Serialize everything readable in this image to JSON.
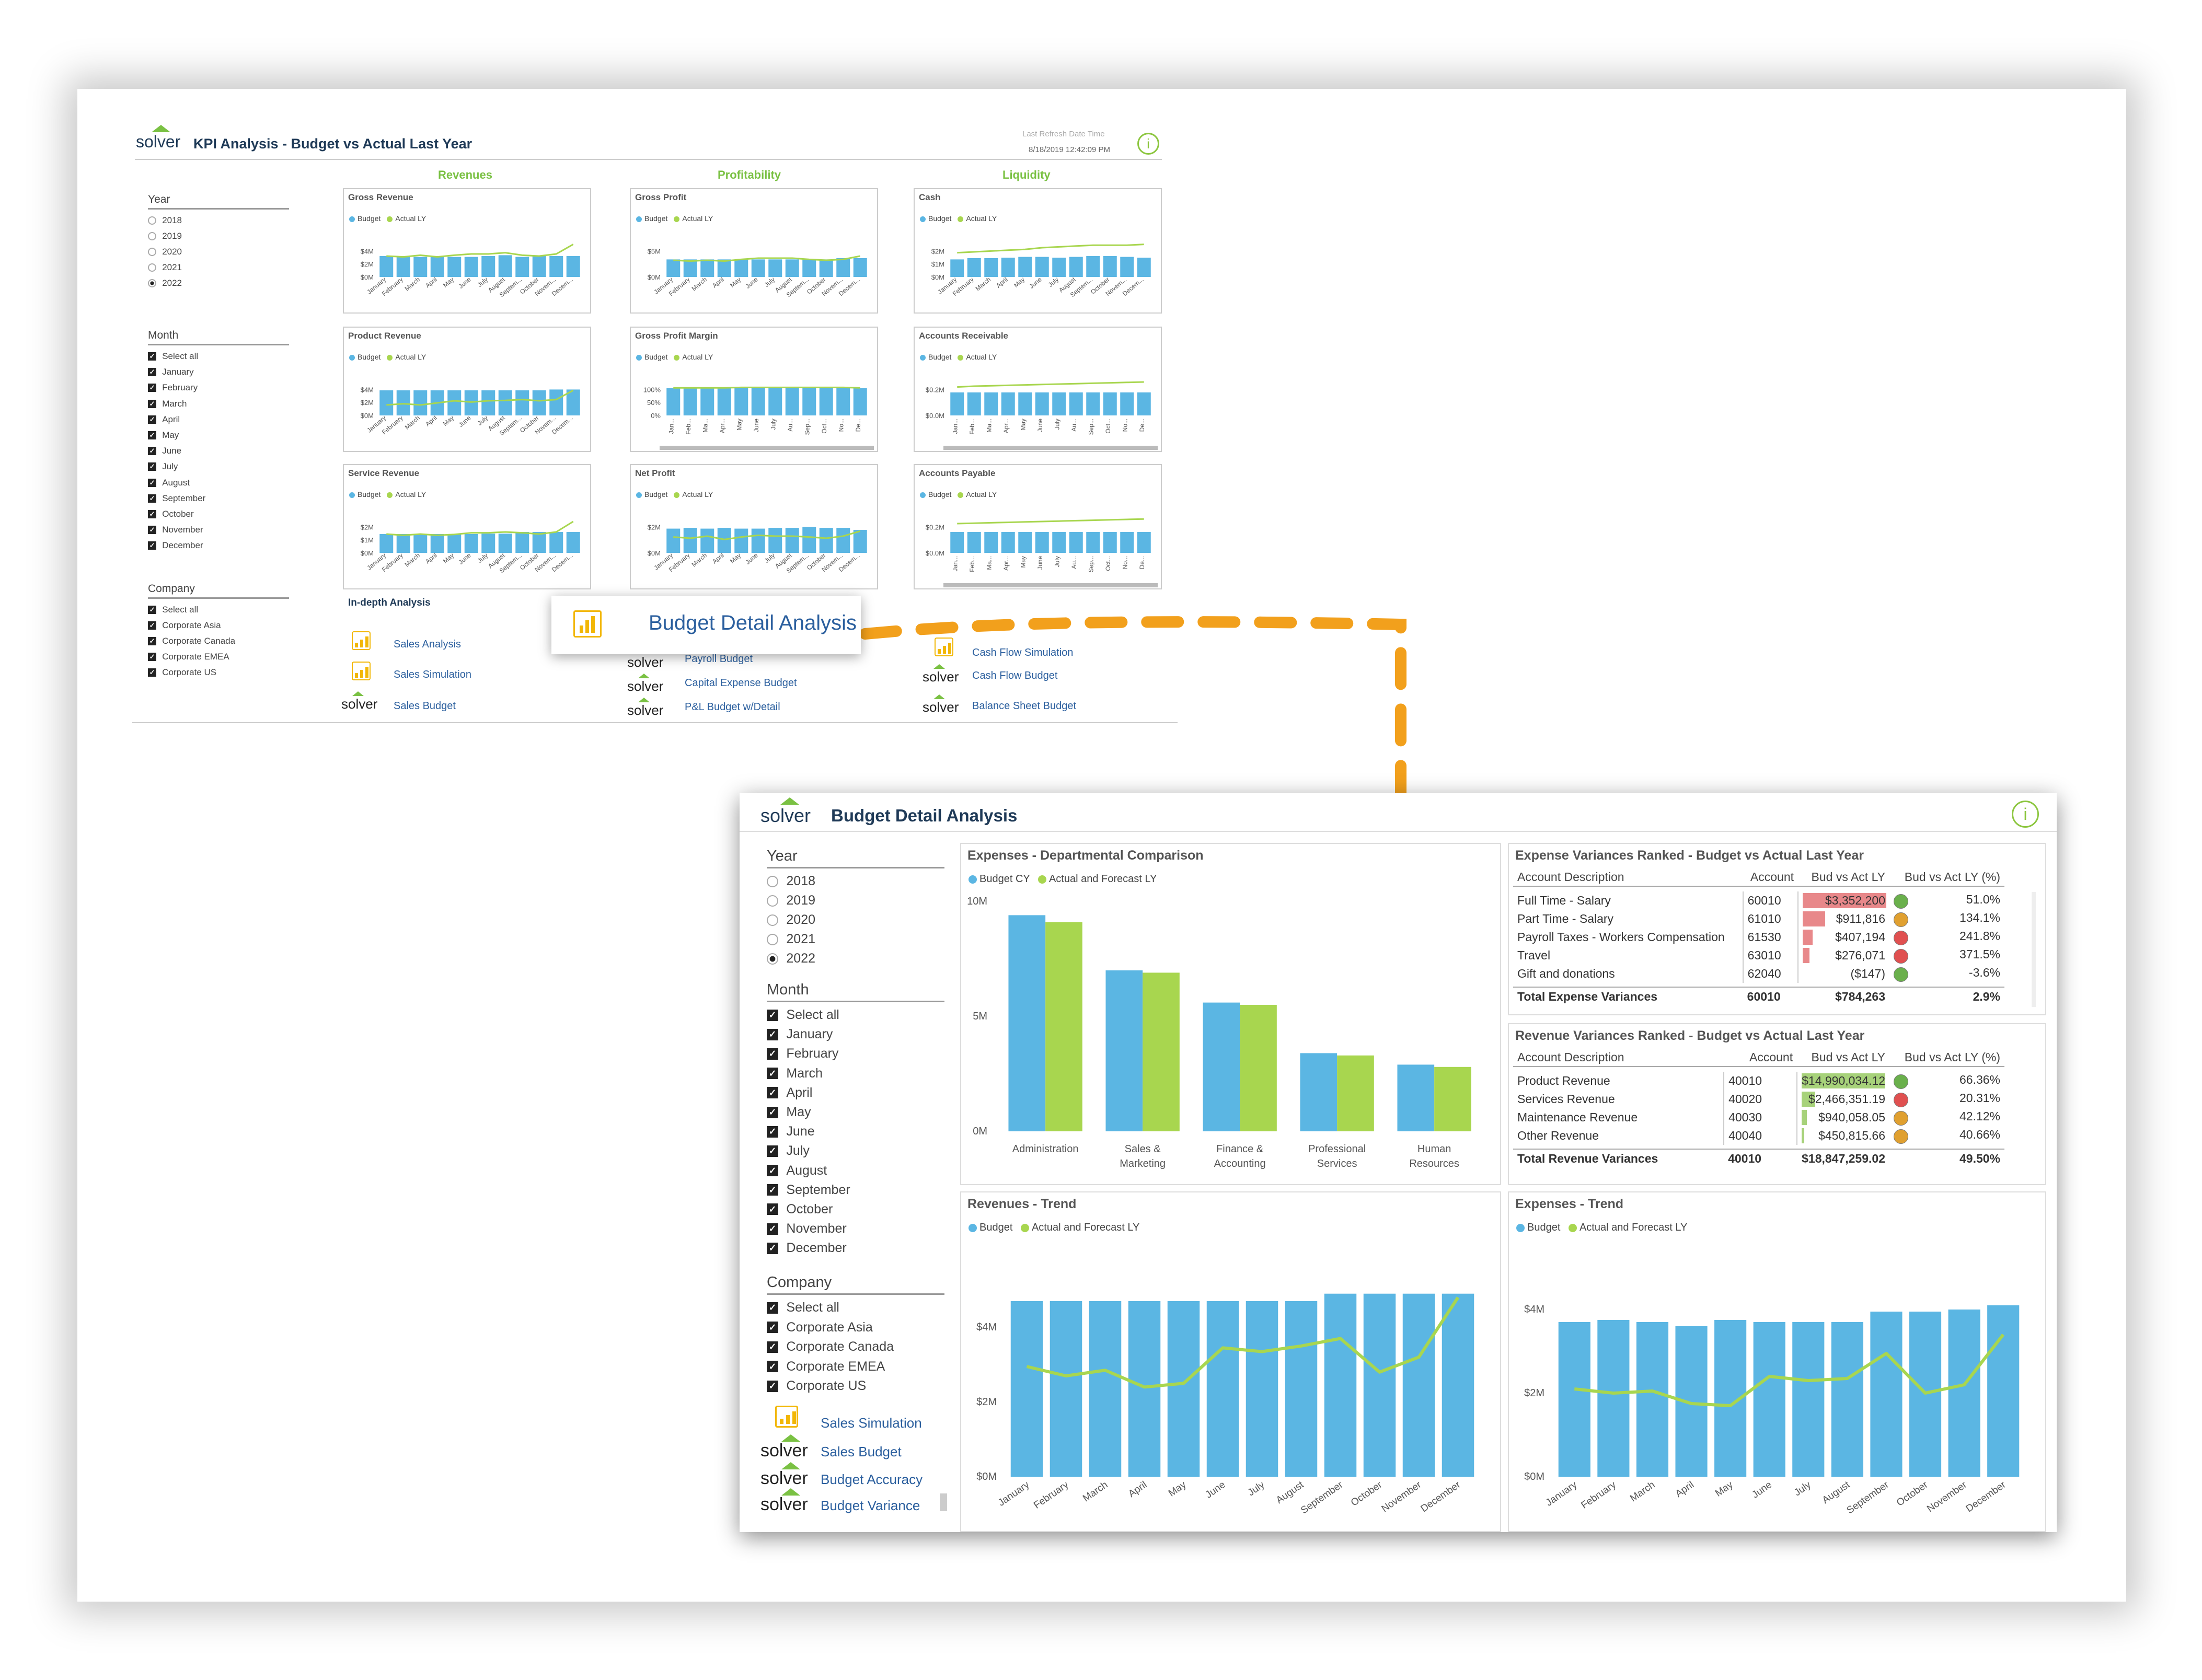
{
  "kpi_report": {
    "logo": "solver",
    "title": "KPI Analysis - Budget vs Actual Last Year",
    "refresh_label": "Last Refresh Date Time",
    "refresh_value": "8/18/2019 12:42:09 PM",
    "year": {
      "label": "Year",
      "options": [
        "2018",
        "2019",
        "2020",
        "2021",
        "2022"
      ],
      "selected": "2022"
    },
    "month": {
      "label": "Month",
      "options": [
        "Select all",
        "January",
        "February",
        "March",
        "April",
        "May",
        "June",
        "July",
        "August",
        "September",
        "October",
        "November",
        "December"
      ]
    },
    "company": {
      "label": "Company",
      "options": [
        "Select all",
        "Corporate Asia",
        "Corporate Canada",
        "Corporate EMEA",
        "Corporate US"
      ]
    },
    "sections": [
      "Revenues",
      "Profitability",
      "Liquidity"
    ],
    "legend": {
      "budget": "Budget",
      "actual": "Actual LY"
    },
    "cards": [
      {
        "title": "Gross Revenue",
        "yticks": [
          "$4M",
          "$2M",
          "$0M"
        ],
        "xfmt": "month",
        "bars": [
          0.5,
          0.5,
          0.48,
          0.5,
          0.48,
          0.48,
          0.5,
          0.52,
          0.48,
          0.5,
          0.5,
          0.5
        ],
        "line": [
          0.5,
          0.48,
          0.52,
          0.48,
          0.52,
          0.55,
          0.55,
          0.58,
          0.52,
          0.5,
          0.55,
          0.78
        ]
      },
      {
        "title": "Gross Profit",
        "yticks": [
          "$5M",
          "$0M"
        ],
        "xfmt": "month",
        "bars": [
          0.42,
          0.42,
          0.42,
          0.42,
          0.42,
          0.42,
          0.42,
          0.42,
          0.42,
          0.42,
          0.45,
          0.45
        ],
        "line": [
          0.4,
          0.38,
          0.4,
          0.38,
          0.42,
          0.45,
          0.45,
          0.45,
          0.42,
          0.4,
          0.42,
          0.5
        ]
      },
      {
        "title": "Cash",
        "yticks": [
          "$2M",
          "$1M",
          "$0M"
        ],
        "xfmt": "month",
        "bars": [
          0.42,
          0.45,
          0.45,
          0.46,
          0.48,
          0.48,
          0.46,
          0.48,
          0.5,
          0.5,
          0.48,
          0.46
        ],
        "line": [
          0.58,
          0.6,
          0.62,
          0.64,
          0.66,
          0.7,
          0.72,
          0.74,
          0.76,
          0.76,
          0.76,
          0.78
        ]
      },
      {
        "title": "Product Revenue",
        "yticks": [
          "$4M",
          "$2M",
          "$0M"
        ],
        "xfmt": "month",
        "bars": [
          0.6,
          0.6,
          0.6,
          0.6,
          0.6,
          0.6,
          0.6,
          0.6,
          0.6,
          0.6,
          0.62,
          0.62
        ],
        "line": [
          0.25,
          0.28,
          0.25,
          0.3,
          0.35,
          0.32,
          0.35,
          0.36,
          0.38,
          0.35,
          0.38,
          0.6
        ]
      },
      {
        "title": "Gross Profit Margin",
        "yticks": [
          "100%",
          "50%",
          "0%"
        ],
        "xfmt": "short",
        "bars": [
          0.65,
          0.65,
          0.65,
          0.65,
          0.65,
          0.65,
          0.65,
          0.65,
          0.65,
          0.65,
          0.65,
          0.65
        ],
        "line": [
          0.66,
          0.66,
          0.66,
          0.66,
          0.67,
          0.67,
          0.67,
          0.67,
          0.67,
          0.67,
          0.67,
          0.66
        ]
      },
      {
        "title": "Accounts Receivable",
        "yticks": [
          "$0.2M",
          "$0.0M"
        ],
        "xfmt": "short",
        "bars": [
          0.55,
          0.55,
          0.55,
          0.55,
          0.55,
          0.55,
          0.55,
          0.55,
          0.55,
          0.55,
          0.55,
          0.55
        ],
        "line": [
          0.68,
          0.7,
          0.71,
          0.72,
          0.73,
          0.74,
          0.75,
          0.76,
          0.77,
          0.78,
          0.79,
          0.8
        ]
      },
      {
        "title": "Service Revenue",
        "yticks": [
          "$2M",
          "$1M",
          "$0M"
        ],
        "xfmt": "month",
        "bars": [
          0.45,
          0.45,
          0.44,
          0.45,
          0.44,
          0.45,
          0.46,
          0.46,
          0.5,
          0.5,
          0.5,
          0.5
        ],
        "line": [
          0.45,
          0.42,
          0.45,
          0.42,
          0.44,
          0.48,
          0.48,
          0.5,
          0.48,
          0.45,
          0.5,
          0.75
        ]
      },
      {
        "title": "Net Profit",
        "yticks": [
          "$2M",
          "$0M"
        ],
        "xfmt": "month",
        "bars": [
          0.58,
          0.6,
          0.58,
          0.6,
          0.58,
          0.58,
          0.6,
          0.6,
          0.62,
          0.6,
          0.6,
          0.55
        ],
        "line": [
          0.38,
          0.35,
          0.4,
          0.32,
          0.38,
          0.42,
          0.4,
          0.4,
          0.38,
          0.35,
          0.4,
          0.52
        ]
      },
      {
        "title": "Accounts Payable",
        "yticks": [
          "$0.2M",
          "$0.0M"
        ],
        "xfmt": "short",
        "bars": [
          0.5,
          0.5,
          0.5,
          0.5,
          0.5,
          0.5,
          0.5,
          0.5,
          0.5,
          0.5,
          0.5,
          0.5
        ],
        "line": [
          0.7,
          0.71,
          0.72,
          0.73,
          0.74,
          0.75,
          0.76,
          0.77,
          0.78,
          0.79,
          0.8,
          0.81
        ]
      }
    ],
    "months_long": [
      "January",
      "February",
      "March",
      "April",
      "May",
      "June",
      "July",
      "August",
      "September",
      "October",
      "November",
      "December"
    ],
    "months_cut": [
      "January",
      "February",
      "March",
      "April",
      "May",
      "June",
      "July",
      "August",
      "Septem...",
      "October",
      "Novem...",
      "Decem..."
    ],
    "months_short": [
      "Jan...",
      "Feb...",
      "Ma...",
      "Apr...",
      "May",
      "June",
      "July",
      "Au...",
      "Sep...",
      "Oct...",
      "No...",
      "De..."
    ],
    "indepth": "In-depth Analysis",
    "links_col1": [
      "Sales  Analysis",
      "Sales Simulation",
      "Sales Budget"
    ],
    "links_col2": [
      "Payroll Budget",
      "Capital Expense Budget",
      "P&L Budget w/Detail"
    ],
    "links_col3": [
      "Cash Flow Simulation",
      "Cash Flow Budget",
      "Balance Sheet Budget"
    ]
  },
  "callout": {
    "label": "Budget Detail Analysis"
  },
  "detail": {
    "logo": "solver",
    "title": "Budget Detail Analysis",
    "year": {
      "label": "Year",
      "options": [
        "2018",
        "2019",
        "2020",
        "2021",
        "2022"
      ],
      "selected": "2022"
    },
    "month": {
      "label": "Month",
      "options": [
        "Select all",
        "January",
        "February",
        "March",
        "April",
        "May",
        "June",
        "July",
        "August",
        "September",
        "October",
        "November",
        "December"
      ]
    },
    "company": {
      "label": "Company",
      "options": [
        "Select all",
        "Corporate Asia",
        "Corporate Canada",
        "Corporate EMEA",
        "Corporate US"
      ]
    },
    "links": [
      "Sales Simulation",
      "Sales Budget",
      "Budget Accuracy",
      "Budget Variance"
    ],
    "dept": {
      "title": "Expenses - Departmental Comparison",
      "legend": [
        "Budget CY",
        "Actual and Forecast LY"
      ],
      "yticks": [
        "10M",
        "5M",
        "0M"
      ],
      "chart_data": {
        "type": "bar",
        "categories": [
          [
            "Administration"
          ],
          [
            "Sales &",
            "Marketing"
          ],
          [
            "Finance &",
            "Accounting"
          ],
          [
            "Professional",
            "Services"
          ],
          [
            "Human",
            "Resources"
          ]
        ],
        "series": [
          {
            "name": "Budget CY",
            "values": [
              9.4,
              7.0,
              5.6,
              3.4,
              2.9
            ]
          },
          {
            "name": "Actual and Forecast LY",
            "values": [
              9.1,
              6.9,
              5.5,
              3.3,
              2.8
            ]
          }
        ],
        "ylim": [
          0,
          10
        ]
      }
    },
    "expvar": {
      "title": "Expense Variances Ranked - Budget vs Actual Last Year",
      "cols": [
        "Account Description",
        "Account",
        "Bud vs Act LY",
        "Bud vs Act LY (%)"
      ],
      "rows": [
        {
          "desc": "Full Time - Salary",
          "acct": "60010",
          "val": "$3,352,200",
          "pct": "51.0%",
          "fill": 1.0,
          "kpi": "#6ab04c"
        },
        {
          "desc": "Part Time - Salary",
          "acct": "61010",
          "val": "$911,816",
          "pct": "134.1%",
          "fill": 0.27,
          "kpi": "#e0a030"
        },
        {
          "desc": "Payroll Taxes - Workers Compensation",
          "acct": "61530",
          "val": "$407,194",
          "pct": "241.8%",
          "fill": 0.12,
          "kpi": "#e05050"
        },
        {
          "desc": "Travel",
          "acct": "63010",
          "val": "$276,071",
          "pct": "371.5%",
          "fill": 0.08,
          "kpi": "#e05050"
        },
        {
          "desc": "Gift and donations",
          "acct": "62040",
          "val": "($147)",
          "pct": "-3.6%",
          "fill": 0.0,
          "kpi": "#6ab04c"
        }
      ],
      "total": {
        "desc": "Total Expense Variances",
        "acct": "60010",
        "val": "$784,263",
        "pct": "2.9%"
      }
    },
    "revvar": {
      "title": "Revenue Variances Ranked - Budget vs Actual Last Year",
      "cols": [
        "Account Description",
        "Account",
        "Bud vs Act LY",
        "Bud vs Act LY (%)"
      ],
      "rows": [
        {
          "desc": "Product Revenue",
          "acct": "40010",
          "val": "$14,990,034.12",
          "pct": "66.36%",
          "fill": 1.0,
          "kpi": "#6ab04c"
        },
        {
          "desc": "Services Revenue",
          "acct": "40020",
          "val": "$2,466,351.19",
          "pct": "20.31%",
          "fill": 0.16,
          "kpi": "#e05050"
        },
        {
          "desc": "Maintenance Revenue",
          "acct": "40030",
          "val": "$940,058.05",
          "pct": "42.12%",
          "fill": 0.06,
          "kpi": "#e0a030"
        },
        {
          "desc": "Other Revenue",
          "acct": "40040",
          "val": "$450,815.66",
          "pct": "40.66%",
          "fill": 0.03,
          "kpi": "#e0a030"
        }
      ],
      "total": {
        "desc": "Total Revenue Variances",
        "acct": "40010",
        "val": "$18,847,259.02",
        "pct": "49.50%"
      }
    },
    "revtrend": {
      "title": "Revenues - Trend",
      "legend": [
        "Budget",
        "Actual and Forecast LY"
      ],
      "yticks": [
        "$4M",
        "$2M",
        "$0M"
      ],
      "chart_data": {
        "type": "bar",
        "categories": [
          "January",
          "February",
          "March",
          "April",
          "May",
          "June",
          "July",
          "August",
          "September",
          "October",
          "November",
          "December"
        ],
        "series": [
          {
            "name": "Budget",
            "values": [
              4.7,
              4.7,
              4.7,
              4.7,
              4.7,
              4.7,
              4.7,
              4.7,
              4.9,
              4.9,
              4.9,
              4.9
            ]
          },
          {
            "name": "Actual and Forecast LY",
            "values": [
              2.95,
              2.7,
              2.85,
              2.4,
              2.5,
              3.45,
              3.35,
              3.5,
              3.7,
              2.8,
              3.2,
              4.8
            ]
          }
        ],
        "ylim": [
          0,
          5.6
        ]
      }
    },
    "exptrend": {
      "title": "Expenses - Trend",
      "legend": [
        "Budget",
        "Actual and Forecast LY"
      ],
      "yticks": [
        "$4M",
        "$2M",
        "$0M"
      ],
      "chart_data": {
        "type": "bar",
        "categories": [
          "January",
          "February",
          "March",
          "April",
          "May",
          "June",
          "July",
          "August",
          "September",
          "October",
          "November",
          "December"
        ],
        "series": [
          {
            "name": "Budget",
            "values": [
              3.7,
              3.75,
              3.7,
              3.6,
              3.75,
              3.7,
              3.7,
              3.7,
              3.95,
              3.95,
              4.0,
              4.1
            ]
          },
          {
            "name": "Actual and Forecast LY",
            "values": [
              2.1,
              2.0,
              2.05,
              1.75,
              1.7,
              2.4,
              2.3,
              2.35,
              2.95,
              2.0,
              2.2,
              3.4
            ]
          }
        ],
        "ylim": [
          0,
          4.5
        ]
      }
    }
  },
  "colors": {
    "budget": "#5bb6e3",
    "actual": "#a8d64f",
    "navy": "#1f3a57",
    "orange": "#f2a01c"
  }
}
